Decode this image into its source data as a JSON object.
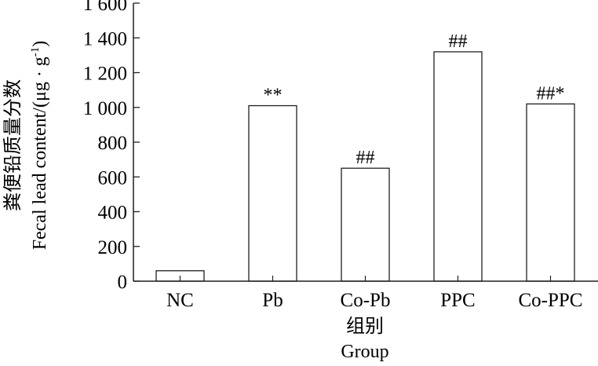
{
  "chart_data": {
    "type": "bar",
    "categories": [
      "NC",
      "Pb",
      "Co-Pb",
      "PPC",
      "Co-PPC"
    ],
    "values": [
      60,
      1010,
      650,
      1320,
      1020
    ],
    "annotations": [
      "",
      "**",
      "##",
      "##",
      "##*"
    ],
    "ylim": [
      0,
      1600
    ],
    "yticks": [
      0,
      200,
      400,
      600,
      800,
      1000,
      1200,
      1400,
      1600
    ],
    "ytick_labels": [
      "0",
      "200",
      "400",
      "600",
      "800",
      "1 000",
      "1 200",
      "1 400",
      "1 600"
    ],
    "ylabel_cn": "粪便铅质量分数",
    "ylabel_en": "Fecal lead content/(μg · g",
    "ylabel_sup": "-1",
    "ylabel_close": ")",
    "xlabel_cn": "组别",
    "xlabel_en": "Group",
    "grid": false,
    "colors": {
      "bar_fill": "#ffffff",
      "bar_stroke": "#231f20"
    }
  }
}
